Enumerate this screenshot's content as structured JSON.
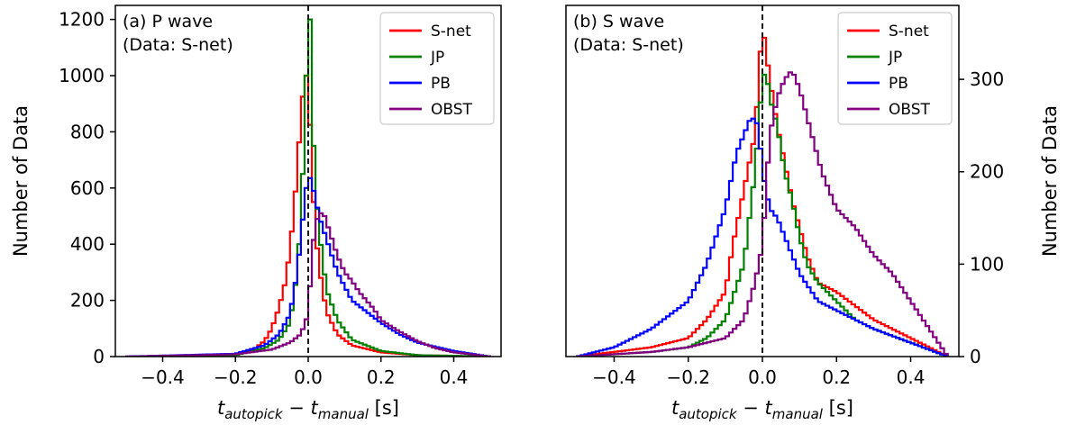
{
  "chart_data": [
    {
      "type": "histogram-step",
      "title": "(a) P wave",
      "subtitle": "(Data: S-net)",
      "xlabel_main": "t",
      "xlabel_sub1": "autopick",
      "xlabel_mid": " − t",
      "xlabel_sub2": "manual",
      "xlabel_unit": " [s]",
      "ylabel": "Number of Data",
      "y_axis_side": "left",
      "xlim": [
        -0.53,
        0.53
      ],
      "ylim": [
        0,
        1250
      ],
      "xticks": [
        {
          "v": -0.4,
          "label": "−0.4"
        },
        {
          "v": -0.2,
          "label": "−0.2"
        },
        {
          "v": 0.0,
          "label": "0.0"
        },
        {
          "v": 0.2,
          "label": "0.2"
        },
        {
          "v": 0.4,
          "label": "0.4"
        }
      ],
      "yticks": [
        {
          "v": 0,
          "label": "0"
        },
        {
          "v": 200,
          "label": "200"
        },
        {
          "v": 400,
          "label": "400"
        },
        {
          "v": 600,
          "label": "600"
        },
        {
          "v": 800,
          "label": "800"
        },
        {
          "v": 1000,
          "label": "1000"
        },
        {
          "v": 1200,
          "label": "1200"
        }
      ],
      "reference_line_x": 0.0,
      "legend_position": "top-right",
      "bin_width": 0.01,
      "series": [
        {
          "name": "S-net",
          "color": "#ff0000",
          "x": [
            -0.5,
            -0.2,
            -0.15,
            -0.12,
            -0.1,
            -0.08,
            -0.06,
            -0.04,
            -0.02,
            -0.01,
            0.0,
            0.01,
            0.02,
            0.03,
            0.05,
            0.08,
            0.12,
            0.2,
            0.3,
            0.5
          ],
          "y": [
            0,
            8,
            25,
            55,
            100,
            175,
            280,
            500,
            850,
            1000,
            1000,
            650,
            450,
            320,
            160,
            80,
            40,
            15,
            5,
            0
          ]
        },
        {
          "name": "JP",
          "color": "#008000",
          "x": [
            -0.5,
            -0.2,
            -0.12,
            -0.08,
            -0.05,
            -0.03,
            -0.02,
            -0.01,
            0.0,
            0.005,
            0.01,
            0.02,
            0.03,
            0.05,
            0.08,
            0.12,
            0.2,
            0.3,
            0.5
          ],
          "y": [
            0,
            5,
            30,
            60,
            120,
            300,
            500,
            800,
            1200,
            1200,
            900,
            600,
            450,
            240,
            130,
            60,
            20,
            5,
            0
          ]
        },
        {
          "name": "PB",
          "color": "#0000ff",
          "x": [
            -0.5,
            -0.2,
            -0.12,
            -0.08,
            -0.05,
            -0.03,
            -0.01,
            0.0,
            0.01,
            0.02,
            0.03,
            0.05,
            0.08,
            0.12,
            0.16,
            0.2,
            0.25,
            0.3,
            0.4,
            0.5
          ],
          "y": [
            0,
            10,
            40,
            80,
            150,
            300,
            550,
            650,
            620,
            560,
            500,
            420,
            300,
            200,
            160,
            120,
            80,
            50,
            20,
            0
          ]
        },
        {
          "name": "OBST",
          "color": "#800080",
          "x": [
            -0.5,
            -0.2,
            -0.1,
            -0.05,
            -0.02,
            0.0,
            0.01,
            0.02,
            0.03,
            0.04,
            0.06,
            0.08,
            0.1,
            0.12,
            0.14,
            0.16,
            0.18,
            0.2,
            0.25,
            0.3,
            0.35,
            0.4,
            0.5
          ],
          "y": [
            0,
            8,
            25,
            50,
            80,
            150,
            350,
            480,
            500,
            520,
            440,
            360,
            300,
            270,
            230,
            200,
            170,
            130,
            90,
            55,
            30,
            15,
            0
          ]
        }
      ]
    },
    {
      "type": "histogram-step",
      "title": "(b) S wave",
      "subtitle": "(Data: S-net)",
      "xlabel_main": "t",
      "xlabel_sub1": "autopick",
      "xlabel_mid": " − t",
      "xlabel_sub2": "manual",
      "xlabel_unit": " [s]",
      "ylabel": "Number of Data",
      "y_axis_side": "right",
      "xlim": [
        -0.53,
        0.53
      ],
      "ylim": [
        0,
        380
      ],
      "xticks": [
        {
          "v": -0.4,
          "label": "−0.4"
        },
        {
          "v": -0.2,
          "label": "−0.2"
        },
        {
          "v": 0.0,
          "label": "0.0"
        },
        {
          "v": 0.2,
          "label": "0.2"
        },
        {
          "v": 0.4,
          "label": "0.4"
        }
      ],
      "yticks": [
        {
          "v": 0,
          "label": "0"
        },
        {
          "v": 100,
          "label": "100"
        },
        {
          "v": 200,
          "label": "200"
        },
        {
          "v": 300,
          "label": "300"
        }
      ],
      "reference_line_x": 0.0,
      "legend_position": "top-right",
      "bin_width": 0.01,
      "series": [
        {
          "name": "S-net",
          "color": "#ff0000",
          "x": [
            -0.5,
            -0.3,
            -0.2,
            -0.15,
            -0.1,
            -0.08,
            -0.06,
            -0.04,
            -0.02,
            0.0,
            0.01,
            0.02,
            0.04,
            0.06,
            0.08,
            0.1,
            0.12,
            0.15,
            0.2,
            0.25,
            0.3,
            0.4,
            0.5
          ],
          "y": [
            0,
            10,
            20,
            40,
            70,
            120,
            160,
            200,
            240,
            360,
            330,
            300,
            250,
            210,
            170,
            140,
            110,
            80,
            70,
            55,
            40,
            20,
            0
          ]
        },
        {
          "name": "JP",
          "color": "#008000",
          "x": [
            -0.5,
            -0.3,
            -0.2,
            -0.15,
            -0.1,
            -0.05,
            -0.02,
            0.0,
            0.01,
            0.02,
            0.04,
            0.06,
            0.08,
            0.1,
            0.12,
            0.15,
            0.2,
            0.25,
            0.3,
            0.4,
            0.5
          ],
          "y": [
            0,
            5,
            10,
            20,
            40,
            100,
            200,
            300,
            310,
            280,
            250,
            200,
            170,
            130,
            100,
            80,
            60,
            40,
            30,
            15,
            0
          ]
        },
        {
          "name": "PB",
          "color": "#0000ff",
          "x": [
            -0.5,
            -0.4,
            -0.3,
            -0.2,
            -0.15,
            -0.1,
            -0.07,
            -0.05,
            -0.03,
            -0.01,
            0.0,
            0.02,
            0.04,
            0.06,
            0.08,
            0.1,
            0.15,
            0.2,
            0.3,
            0.4,
            0.5
          ],
          "y": [
            0,
            10,
            30,
            60,
            100,
            160,
            220,
            240,
            260,
            250,
            200,
            160,
            150,
            130,
            110,
            90,
            60,
            50,
            30,
            15,
            0
          ]
        },
        {
          "name": "OBST",
          "color": "#800080",
          "x": [
            -0.5,
            -0.3,
            -0.2,
            -0.1,
            -0.05,
            -0.02,
            0.0,
            0.01,
            0.02,
            0.04,
            0.06,
            0.08,
            0.1,
            0.12,
            0.14,
            0.16,
            0.18,
            0.2,
            0.25,
            0.3,
            0.35,
            0.4,
            0.45,
            0.5
          ],
          "y": [
            0,
            5,
            10,
            20,
            40,
            80,
            120,
            180,
            240,
            280,
            300,
            310,
            290,
            260,
            230,
            200,
            180,
            160,
            140,
            110,
            90,
            60,
            30,
            0
          ]
        }
      ]
    }
  ]
}
